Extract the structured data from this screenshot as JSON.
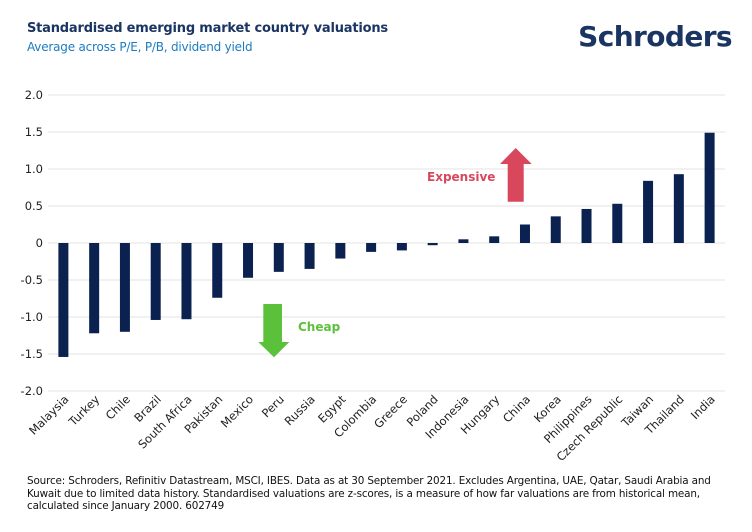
{
  "header": {
    "title": "Standardised emerging market country valuations",
    "subtitle": "Average across P/E, P/B, dividend yield",
    "logo": "Schroders"
  },
  "footer": {
    "source": "Source: Schroders, Refinitiv Datastream, MSCI, IBES. Data as at 30 September 2021. Excludes Argentina, UAE, Qatar, Saudi Arabia and Kuwait due to limited data history. Standardised valuations are z-scores, is a measure of how far valuations are from historical mean, calculated since January 2000. 602749"
  },
  "colors": {
    "bar": "#0b2150",
    "title": "#1b3563",
    "subtitle": "#1c7cc1",
    "expensive": "#d9475d",
    "cheap": "#5cc13a",
    "grid": "#e3e3e3"
  },
  "chart_data": {
    "type": "bar",
    "title": "Standardised emerging market country valuations",
    "subtitle": "Average across P/E, P/B, dividend yield",
    "xlabel": "",
    "ylabel": "",
    "ylim": [
      -2.0,
      2.0
    ],
    "yticks": [
      2.0,
      1.5,
      1.0,
      0.5,
      0,
      -0.5,
      -1.0,
      -1.5,
      -2.0
    ],
    "ytick_labels": [
      "2.0",
      "1.5",
      "1.0",
      "0.5",
      "0",
      "-0.5",
      "-1.0",
      "-1.5",
      "-2.0"
    ],
    "grid": true,
    "legend": "none",
    "categories": [
      "Malaysia",
      "Turkey",
      "Chile",
      "Brazil",
      "South Africa",
      "Pakistan",
      "Mexico",
      "Peru",
      "Russia",
      "Egypt",
      "Colombia",
      "Greece",
      "Poland",
      "Indonesia",
      "Hungary",
      "China",
      "Korea",
      "Philippines",
      "Czech Republic",
      "Taiwan",
      "Thailand",
      "India"
    ],
    "values": [
      -1.54,
      -1.22,
      -1.2,
      -1.04,
      -1.03,
      -0.74,
      -0.47,
      -0.39,
      -0.35,
      -0.21,
      -0.12,
      -0.1,
      -0.03,
      0.05,
      0.09,
      0.25,
      0.36,
      0.46,
      0.53,
      0.84,
      0.93,
      1.49
    ],
    "annotations": [
      {
        "text": "Expensive",
        "direction": "up",
        "color": "#d9475d"
      },
      {
        "text": "Cheap",
        "direction": "down",
        "color": "#5cc13a"
      }
    ]
  }
}
